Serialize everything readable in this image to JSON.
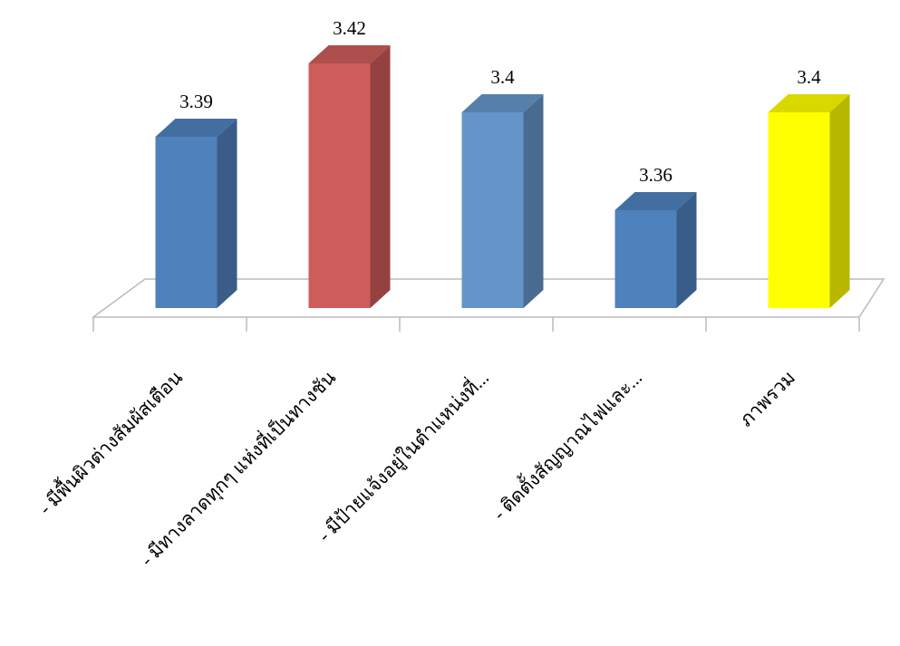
{
  "chart_data": {
    "type": "bar3d",
    "categories": [
      "- มีพื้นผิวต่างสัมผัสเตือน",
      "- มีทางลาดทุกๆ แห่งที่เป็นทางชัน",
      "- มีป้ายแจ้งอยู่ในตำแหน่งที่...",
      "- ติดตั้งสัญญาณไฟและ...",
      "ภาพรวม"
    ],
    "values": [
      3.39,
      3.42,
      3.4,
      3.36,
      3.4
    ],
    "colors": [
      "#4f81bd",
      "#cd5c5a",
      "#6595c8",
      "#4f81bd",
      "#ffff00"
    ],
    "ylim": [
      3.32,
      3.44
    ]
  }
}
